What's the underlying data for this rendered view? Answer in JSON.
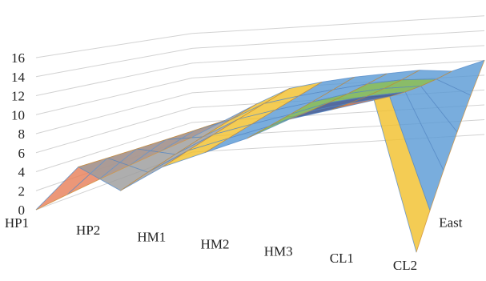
{
  "chart_data": {
    "type": "surface",
    "x_categories": [
      "HP1",
      "HP2",
      "HM1",
      "HM2",
      "HM3",
      "CL1",
      "CL2"
    ],
    "series_labels": [
      "East"
    ],
    "ylim": [
      0,
      16
    ],
    "y_ticks": [
      0,
      2,
      4,
      6,
      8,
      10,
      12,
      14,
      16
    ],
    "grid": true,
    "legend": "none",
    "front_row": [
      0,
      5,
      3,
      6,
      8,
      10,
      12.5,
      14,
      15.5,
      0
    ],
    "back_row": [
      2,
      4,
      6,
      7.8,
      8.4,
      8.8,
      9,
      9.2,
      8.8,
      10
    ],
    "band_colors": [
      "#3b5ba0",
      "#e8805a",
      "#9c9c9c",
      "#f2c12e",
      "#5b9bd5",
      "#70ad47",
      "#2e4b8a",
      "#c0603a"
    ]
  }
}
